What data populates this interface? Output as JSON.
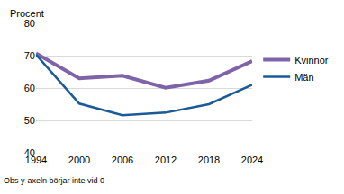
{
  "chart_data": {
    "type": "line",
    "ylabel": "Procent",
    "annotations": [
      "Obs y-axeln börjar inte vid 0"
    ],
    "categories": [
      "1994",
      "2000",
      "2006",
      "2012",
      "2018",
      "2024"
    ],
    "series": [
      {
        "name": "Kvinnor",
        "color": "#7f63a8",
        "values": [
          70.7,
          63.0,
          63.8,
          60.1,
          62.3,
          68.3
        ]
      },
      {
        "name": "Män",
        "color": "#1b5a99",
        "values": [
          70.3,
          55.2,
          51.6,
          52.4,
          55.0,
          61.0
        ]
      }
    ],
    "ylim": [
      40,
      80
    ],
    "yticks": [
      40,
      50,
      60,
      70,
      80
    ],
    "grid": true,
    "legend": "right"
  }
}
